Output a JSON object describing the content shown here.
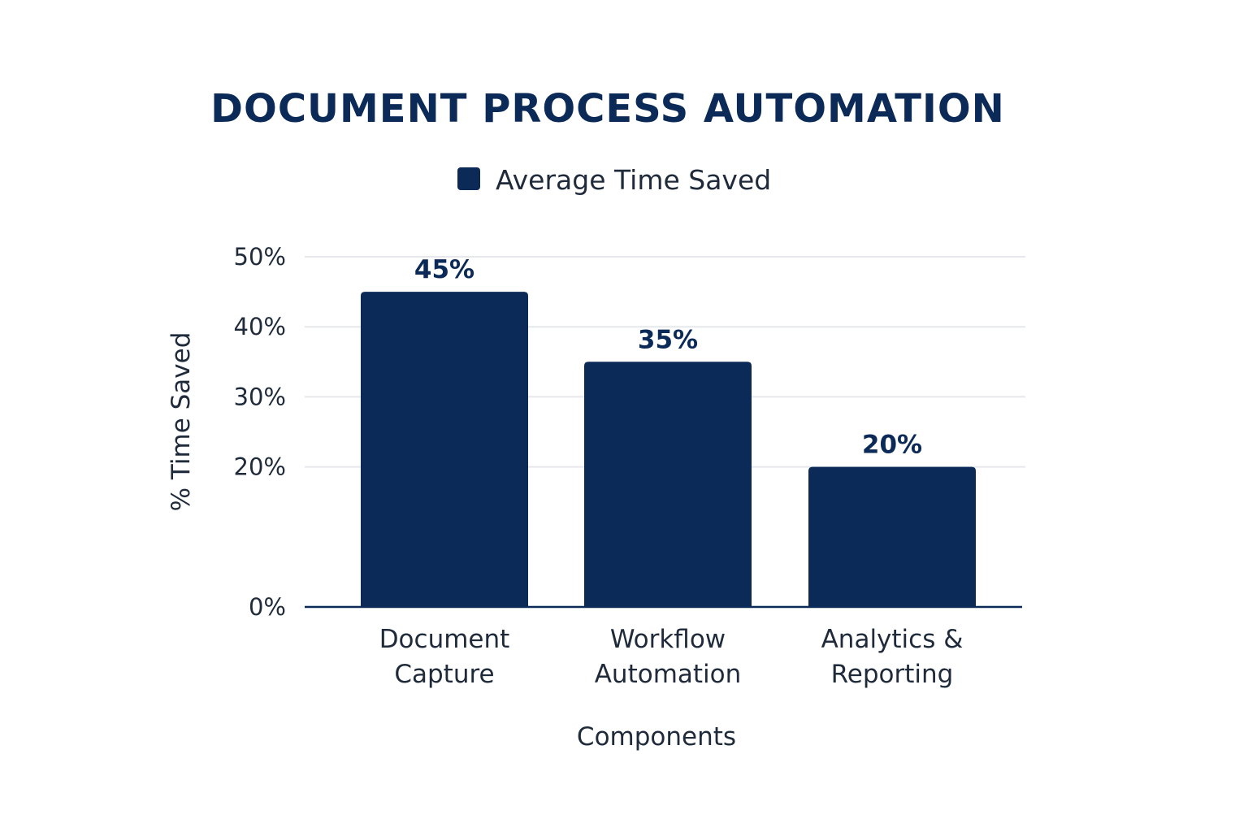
{
  "chart_data": {
    "type": "bar",
    "title": "DOCUMENT PROCESS AUTOMATION",
    "categories": [
      [
        "Document",
        "Capture"
      ],
      [
        "Workflow",
        "Automation"
      ],
      [
        "Analytics &",
        "Reporting"
      ]
    ],
    "series": [
      {
        "name": "Average Time Saved",
        "values": [
          45,
          35,
          20
        ],
        "data_labels": [
          "45%",
          "35%",
          "20%"
        ]
      }
    ],
    "xlabel": "Components",
    "ylabel": "% Time Saved",
    "ylim": [
      0,
      50
    ],
    "yticks": [
      0,
      20,
      30,
      40,
      50
    ],
    "ytick_labels": [
      "0%",
      "20%",
      "30%",
      "40%",
      "50%"
    ],
    "grid": true,
    "legend_position": "top-center",
    "colors": {
      "bar": "#0b2a57",
      "title": "#0b2a57",
      "grid": "#e6e8ec"
    }
  }
}
